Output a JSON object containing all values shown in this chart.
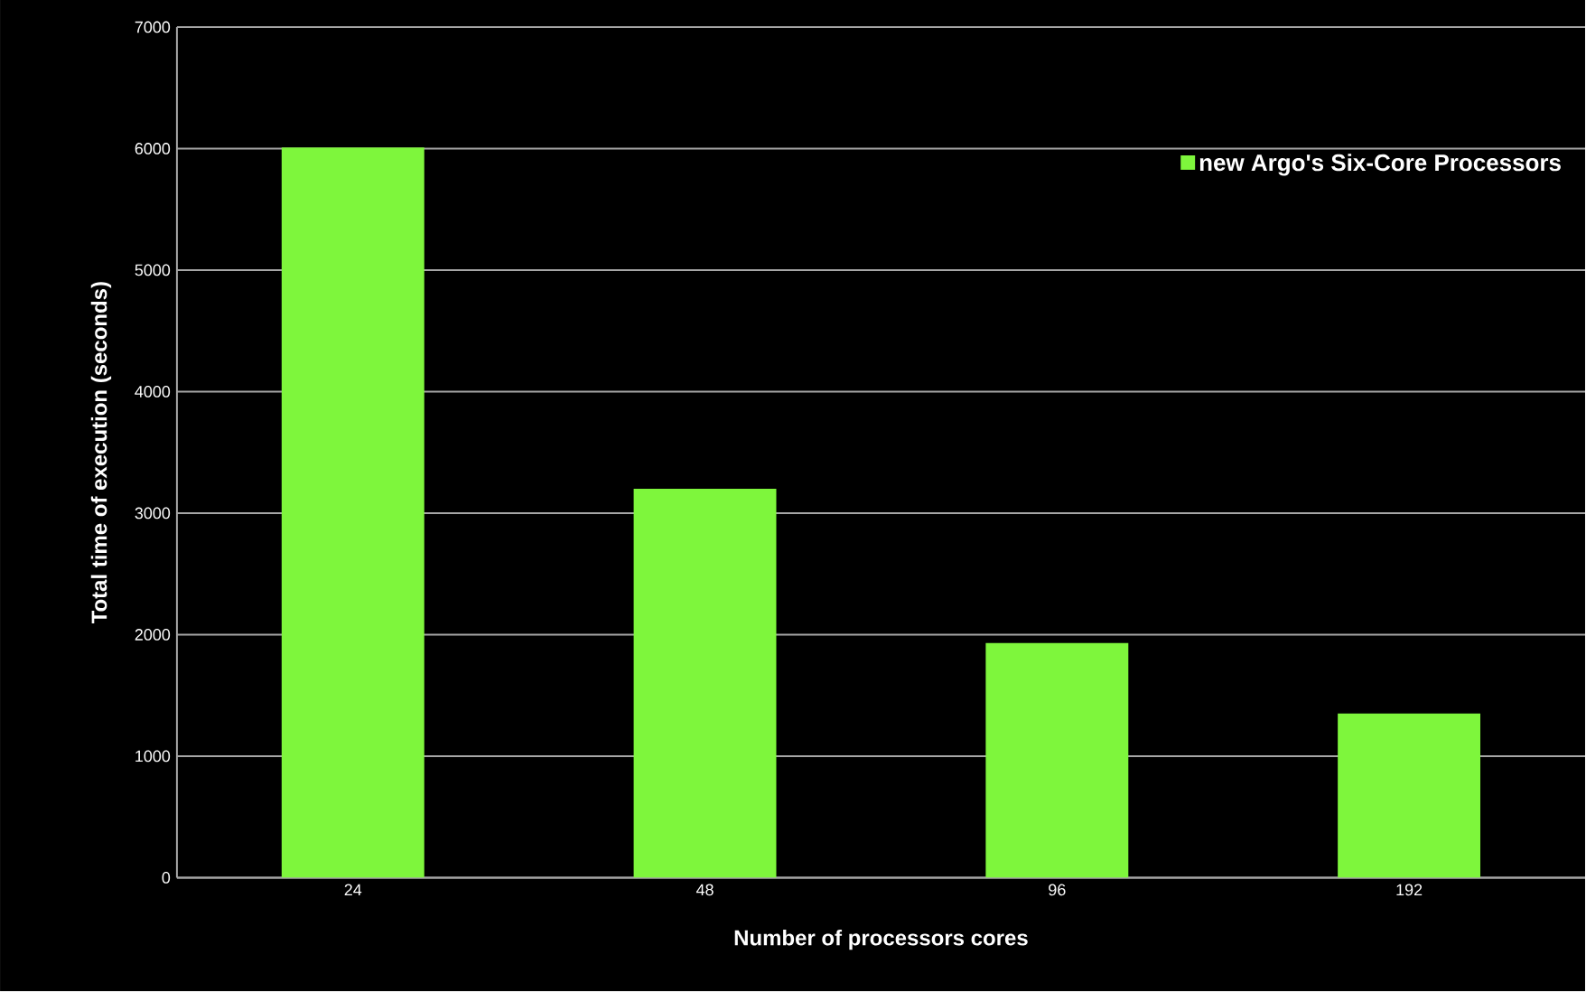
{
  "chart_data": {
    "type": "bar",
    "xlabel": "Number of processors cores",
    "ylabel": "Total time of execution (seconds)",
    "categories": [
      "24",
      "48",
      "96",
      "192"
    ],
    "series": [
      {
        "name": "new Argo's Six-Core Processors",
        "color": "#7ef63c",
        "values": [
          6010,
          3200,
          1930,
          1350
        ]
      }
    ],
    "ylim": [
      0,
      7000
    ],
    "yticks": [
      0,
      1000,
      2000,
      3000,
      4000,
      5000,
      6000,
      7000
    ],
    "grid": "y",
    "legend": "top right"
  }
}
